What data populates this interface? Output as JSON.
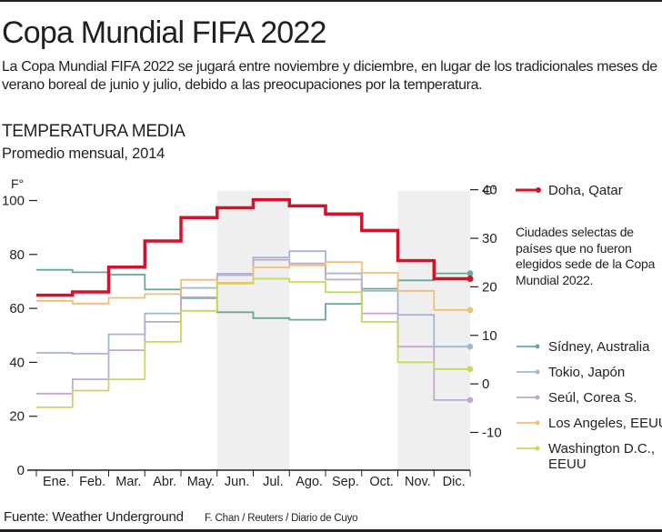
{
  "header": {
    "title": "Copa Mundial FIFA 2022",
    "description": "La Copa Mundial FIFA 2022 se jugará entre noviembre y diciembre, en lugar de los tradicionales meses de verano boreal de junio y julio, debido a las preocupaciones por la temperatura.",
    "subheading": "TEMPERATURA MEDIA",
    "subtitle": "Promedio mensual, 2014"
  },
  "legend": {
    "note": "Ciudades selectas de países que no fueron elegidos sede de la Copa Mundial 2022."
  },
  "footer": {
    "source": "Fuente: Weather Underground",
    "credit": "F. Chan / Reuters / Diario de Cuyo"
  },
  "chart_data": {
    "type": "line",
    "step": true,
    "title": "TEMPERATURA MEDIA",
    "subtitle": "Promedio mensual, 2014",
    "xlabel": "",
    "ylabel": "F°",
    "ylabel_right": "C°",
    "ylim": [
      0,
      100
    ],
    "yticks": [
      0,
      20,
      40,
      60,
      80,
      100
    ],
    "yticks_right": [
      -10,
      0,
      10,
      20,
      30,
      40
    ],
    "categories": [
      "Ene.",
      "Feb.",
      "Mar.",
      "Abr.",
      "May.",
      "Jun.",
      "Jul.",
      "Ago.",
      "Sep.",
      "Oct.",
      "Nov.",
      "Dic."
    ],
    "highlighted_months": [
      [
        "Jun.",
        "Jul."
      ],
      [
        "Nov.",
        "Dic."
      ]
    ],
    "grid": false,
    "legend_position": "right",
    "series": [
      {
        "name": "Sídney, Australia",
        "color": "#6aa897",
        "width": "thin",
        "values": [
          74.3,
          73.4,
          72.5,
          67.0,
          63.8,
          58.6,
          56.4,
          55.8,
          61.7,
          67.3,
          70.4,
          73.0
        ]
      },
      {
        "name": "Tokio, Japón",
        "color": "#a3b6d6",
        "width": "thin",
        "values": [
          43.5,
          43.2,
          50.4,
          58.1,
          67.6,
          72.9,
          78.9,
          81.2,
          73.0,
          66.5,
          57.6,
          45.8
        ]
      },
      {
        "name": "Seúl, Corea S.",
        "color": "#c4a7cc",
        "width": "thin",
        "values": [
          28.4,
          33.7,
          44.5,
          55.0,
          64.1,
          72.3,
          78.0,
          76.7,
          70.7,
          58.1,
          45.8,
          26.0
        ]
      },
      {
        "name": "Los Angeles, EEUU",
        "color": "#f2be75",
        "width": "thin",
        "values": [
          62.8,
          61.8,
          63.9,
          65.3,
          70.6,
          69.5,
          75.2,
          76.0,
          77.2,
          73.2,
          66.5,
          59.4
        ]
      },
      {
        "name": "Washington D.C., EEUU",
        "color": "#c7d95a",
        "width": "thin",
        "values": [
          23.3,
          29.5,
          33.7,
          47.6,
          59.1,
          69.2,
          71.0,
          69.8,
          66.0,
          55.0,
          40.0,
          37.5
        ]
      },
      {
        "name": "Doha, Qatar",
        "color": "#d0142c",
        "width": "thick",
        "values": [
          64.9,
          66.1,
          75.3,
          85.0,
          93.7,
          97.3,
          100.3,
          98.0,
          95.0,
          88.9,
          77.7,
          71.0
        ]
      }
    ]
  }
}
